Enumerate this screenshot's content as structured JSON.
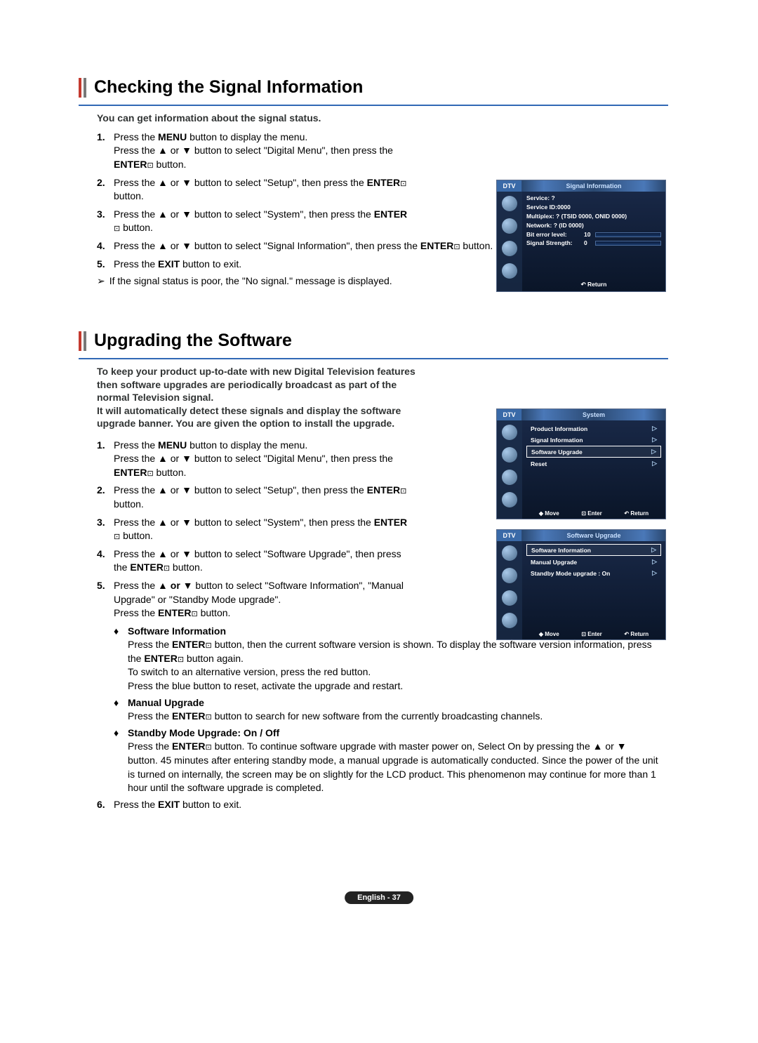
{
  "section1": {
    "title": "Checking the Signal Information",
    "intro": "You can get information about the signal status.",
    "steps": [
      "Press the <b>MENU</b> button to display the menu.<br>Press the ▲ or ▼ button to select \"Digital Menu\", then press the <b>ENTER</b><span class='enter-icon'>⊡</span> button.",
      "Press the ▲ or ▼ button to select \"Setup\", then press the <b>ENTER</b><span class='enter-icon'>⊡</span> button.",
      "Press the ▲ or ▼ button to select \"System\", then press the <b>ENTER</b><span class='enter-icon'>⊡</span> button.",
      "Press the ▲ or ▼ button to select \"Signal Information\", then press the <b>ENTER</b><span class='enter-icon'>⊡</span> button.",
      "Press the <b>EXIT</b> button to exit."
    ],
    "note": "If the signal status is poor, the \"No signal.\" message is displayed."
  },
  "section2": {
    "title": "Upgrading the Software",
    "intro": "To keep your product up-to-date with new Digital Television features then software upgrades are periodically broadcast as part of the normal Television signal.\nIt will automatically detect these signals and display the software upgrade banner. You are given the option to install the upgrade.",
    "steps_narrow": [
      "Press the <b>MENU</b> button to display the menu.<br>Press the ▲ or ▼ button to select \"Digital Menu\", then press the <b>ENTER</b><span class='enter-icon'>⊡</span> button.",
      "Press the ▲ or ▼ button to select \"Setup\", then press the <b>ENTER</b><span class='enter-icon'>⊡</span> button.",
      "Press the ▲ or ▼ button to select \"System\", then press the <b>ENTER</b><span class='enter-icon'>⊡</span> button.",
      "Press the ▲ or ▼ button to select \"Software Upgrade\", then press the <b>ENTER</b><span class='enter-icon'>⊡</span> button.",
      "Press the ▲ <b>or</b> ▼ button to select \"Software Information\", \"Manual Upgrade\" or \"Standby Mode upgrade\".<br>Press the <b>ENTER</b><span class='enter-icon'>⊡</span> button."
    ],
    "subs": [
      {
        "title": "Software Information",
        "body": "Press the <b>ENTER</b><span class='enter-icon'>⊡</span> button, then the current software version is shown. To display the software version information, press the <b>ENTER</b><span class='enter-icon'>⊡</span> button again.<br>To switch to an alternative version, press the red button.<br>Press the blue button to reset, activate the upgrade and restart."
      },
      {
        "title": "Manual Upgrade",
        "body": "Press the <b>ENTER</b><span class='enter-icon'>⊡</span> button to search for new software from the currently broadcasting channels."
      },
      {
        "title": "Standby Mode Upgrade: On / Off",
        "body": "Press the <b>ENTER</b><span class='enter-icon'>⊡</span> button. To continue software upgrade with master power on, Select On by pressing the ▲ or ▼ button. 45 minutes after entering standby mode, a manual upgrade is automatically conducted. Since the power of the unit is turned on internally, the screen may be on slightly for the LCD product. This phenomenon may continue for more than 1 hour until the software upgrade is completed."
      }
    ],
    "step6": "Press the <b>EXIT</b> button to exit."
  },
  "tv1": {
    "dtv": "DTV",
    "title": "Signal Information",
    "lines": [
      "Service: ?",
      "Service ID:0000",
      "Multiplex: ? (TSID 0000, ONID 0000)",
      "Network: ? (ID 0000)"
    ],
    "bar1_label": "Bit error level:",
    "bar1_val": "10",
    "bar2_label": "Signal Strength:",
    "bar2_val": "0",
    "return": "↶ Return"
  },
  "tv2": {
    "dtv": "DTV",
    "title": "System",
    "items": [
      "Product Information",
      "Signal Information",
      "Software Upgrade",
      "Reset"
    ],
    "selected_index": 2,
    "footer": [
      "◆ Move",
      "⊡ Enter",
      "↶ Return"
    ]
  },
  "tv3": {
    "dtv": "DTV",
    "title": "Software Upgrade",
    "items": [
      "Software Information",
      "Manual Upgrade",
      "Standby Mode upgrade : On"
    ],
    "selected_index": 0,
    "footer": [
      "◆ Move",
      "⊡ Enter",
      "↶ Return"
    ]
  },
  "footer": "English - 37"
}
